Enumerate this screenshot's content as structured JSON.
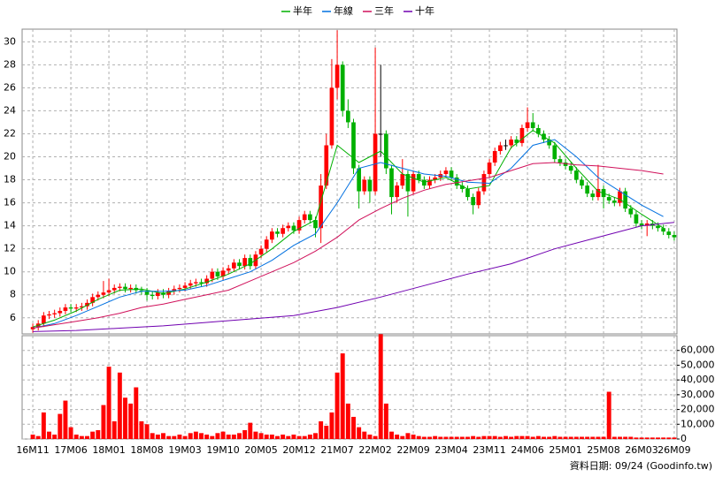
{
  "chart_data": {
    "type": "candlestick",
    "categories": [
      "16M11",
      null,
      null,
      null,
      null,
      null,
      null,
      "17M06",
      null,
      null,
      null,
      null,
      null,
      null,
      "18M01",
      null,
      null,
      null,
      null,
      null,
      null,
      "18M08",
      null,
      null,
      null,
      null,
      null,
      null,
      "19M03",
      null,
      null,
      null,
      null,
      null,
      null,
      "19M10",
      null,
      null,
      null,
      null,
      null,
      null,
      "20M05",
      null,
      null,
      null,
      null,
      null,
      null,
      "20M12",
      null,
      null,
      null,
      null,
      null,
      null,
      "21M07",
      null,
      null,
      null,
      null,
      null,
      null,
      "22M02",
      null,
      null,
      null,
      null,
      null,
      null,
      "22M09",
      null,
      null,
      null,
      null,
      null,
      null,
      "23M04",
      null,
      null,
      null,
      null,
      null,
      null,
      "23M11",
      null,
      null,
      null,
      null,
      null,
      null,
      "24M06",
      null,
      null,
      null,
      null,
      null,
      null,
      "25M01",
      null,
      null,
      null,
      null,
      null,
      null,
      "25M08",
      null,
      null,
      null,
      null,
      null,
      null,
      "26M03",
      null,
      null,
      null,
      null,
      null,
      "26M09"
    ],
    "open": [
      5.0,
      5.2,
      5.5,
      6.2,
      6.3,
      6.4,
      6.6,
      6.9,
      6.8,
      6.9,
      7.0,
      7.3,
      7.8,
      8.0,
      8.2,
      8.4,
      8.6,
      8.7,
      8.5,
      8.6,
      8.4,
      8.3,
      8.0,
      7.9,
      8.2,
      8.0,
      8.3,
      8.5,
      8.6,
      8.8,
      9.0,
      9.1,
      9.0,
      9.4,
      10.0,
      9.6,
      10.1,
      10.3,
      10.8,
      10.5,
      11.2,
      10.5,
      11.5,
      12.0,
      12.8,
      13.5,
      13.3,
      13.8,
      14.0,
      13.6,
      14.5,
      15.0,
      14.5,
      13.8,
      17.5,
      21.0,
      26.0,
      28.0,
      24.0,
      23.0,
      19.0,
      17.0,
      18.0,
      17.0,
      22.0,
      22.0,
      19.0,
      16.5,
      17.5,
      18.5,
      17.0,
      18.5,
      18.0,
      17.5,
      18.0,
      18.2,
      18.5,
      18.8,
      18.2,
      17.5,
      17.2,
      16.5,
      15.8,
      17.0,
      18.5,
      19.5,
      20.5,
      21.0,
      21.0,
      21.5,
      21.2,
      22.5,
      23.0,
      22.5,
      22.0,
      21.5,
      21.0,
      19.8,
      19.5,
      19.2,
      18.8,
      18.0,
      17.5,
      16.8,
      16.5,
      17.2,
      16.5,
      16.2,
      16.0,
      17.0,
      15.5,
      15.0,
      14.2,
      14.0,
      14.2,
      14.0,
      13.8,
      13.5,
      13.2
    ],
    "high": [
      5.5,
      5.8,
      6.5,
      6.6,
      6.7,
      6.9,
      7.2,
      7.2,
      7.2,
      7.3,
      7.6,
      8.1,
      8.3,
      9.2,
      9.4,
      8.9,
      9.0,
      9.0,
      8.9,
      8.9,
      8.7,
      8.6,
      8.3,
      8.5,
      8.5,
      8.6,
      8.8,
      8.9,
      9.1,
      9.3,
      9.4,
      9.4,
      9.7,
      10.3,
      10.3,
      10.4,
      10.6,
      11.1,
      11.1,
      11.5,
      11.5,
      11.8,
      12.3,
      13.1,
      13.8,
      13.8,
      14.1,
      14.3,
      14.3,
      14.8,
      15.3,
      15.3,
      14.8,
      18.5,
      22.0,
      28.5,
      31.0,
      28.3,
      25.0,
      23.3,
      19.3,
      18.3,
      18.3,
      29.5,
      28.0,
      22.3,
      19.3,
      17.8,
      19.8,
      18.8,
      18.8,
      18.8,
      18.3,
      18.3,
      18.5,
      18.8,
      19.1,
      19.1,
      18.5,
      17.8,
      17.5,
      16.8,
      17.3,
      18.8,
      19.8,
      20.8,
      21.3,
      21.5,
      21.8,
      21.8,
      22.8,
      24.3,
      23.8,
      22.8,
      22.3,
      21.8,
      21.3,
      20.1,
      19.8,
      19.5,
      19.1,
      18.3,
      17.8,
      17.1,
      19.3,
      17.5,
      16.8,
      16.5,
      17.3,
      17.3,
      15.8,
      15.3,
      14.5,
      14.5,
      14.5,
      14.3,
      14.1,
      13.8,
      13.5
    ],
    "low": [
      4.7,
      4.9,
      5.2,
      5.9,
      6.0,
      6.1,
      6.3,
      6.5,
      6.5,
      6.6,
      6.7,
      7.0,
      7.5,
      7.7,
      7.9,
      8.1,
      8.3,
      8.2,
      8.2,
      8.1,
      8.0,
      7.5,
      7.6,
      7.6,
      7.7,
      7.7,
      8.0,
      8.2,
      8.3,
      8.5,
      8.7,
      8.7,
      8.7,
      9.1,
      9.3,
      9.3,
      9.8,
      10.0,
      10.2,
      10.2,
      10.2,
      10.2,
      11.2,
      11.7,
      12.5,
      13.0,
      13.0,
      13.5,
      13.3,
      13.3,
      14.2,
      14.2,
      13.0,
      12.5,
      17.2,
      20.7,
      25.0,
      23.5,
      22.5,
      18.5,
      15.5,
      16.7,
      16.0,
      16.7,
      20.0,
      18.5,
      15.0,
      16.0,
      17.2,
      14.8,
      16.7,
      17.7,
      17.2,
      17.2,
      17.7,
      17.9,
      18.2,
      17.9,
      17.2,
      16.9,
      16.2,
      15.0,
      15.5,
      16.7,
      18.2,
      19.2,
      20.2,
      20.6,
      20.7,
      20.9,
      20.9,
      22.2,
      22.2,
      21.7,
      21.2,
      20.7,
      19.5,
      19.2,
      18.9,
      18.5,
      17.7,
      17.2,
      16.5,
      16.2,
      16.2,
      15.5,
      15.9,
      15.7,
      15.7,
      15.2,
      14.7,
      13.9,
      13.7,
      13.1,
      13.7,
      13.5,
      13.2,
      12.9,
      12.7
    ],
    "close": [
      5.2,
      5.5,
      6.2,
      6.3,
      6.4,
      6.6,
      6.9,
      6.8,
      6.9,
      7.0,
      7.3,
      7.8,
      8.0,
      8.2,
      8.4,
      8.6,
      8.7,
      8.5,
      8.6,
      8.4,
      8.3,
      8.0,
      7.9,
      8.2,
      8.0,
      8.3,
      8.5,
      8.6,
      8.8,
      9.0,
      9.1,
      9.0,
      9.4,
      10.0,
      9.6,
      10.1,
      10.3,
      10.8,
      10.5,
      11.2,
      10.5,
      11.5,
      12.0,
      12.8,
      13.5,
      13.3,
      13.8,
      14.0,
      13.6,
      14.5,
      15.0,
      14.5,
      13.8,
      17.5,
      21.0,
      26.0,
      28.0,
      24.0,
      23.0,
      19.0,
      17.0,
      18.0,
      17.0,
      22.0,
      22.0,
      19.0,
      16.5,
      17.5,
      18.5,
      17.0,
      18.5,
      18.0,
      17.5,
      18.0,
      18.2,
      18.5,
      18.8,
      18.2,
      17.5,
      17.2,
      16.5,
      15.8,
      17.0,
      18.5,
      19.5,
      20.5,
      21.0,
      21.0,
      21.5,
      21.2,
      22.5,
      23.0,
      22.5,
      22.0,
      21.5,
      21.0,
      19.8,
      19.5,
      19.2,
      18.8,
      18.0,
      17.5,
      16.8,
      16.5,
      17.2,
      16.5,
      16.2,
      16.0,
      17.0,
      15.5,
      15.0,
      14.2,
      14.0,
      14.2,
      14.0,
      13.8,
      13.5,
      13.2,
      13.0
    ],
    "volume": [
      3000,
      2000,
      18000,
      5000,
      3000,
      17000,
      26000,
      8000,
      3000,
      2000,
      2000,
      5000,
      6000,
      23000,
      49000,
      12000,
      45000,
      28000,
      24000,
      35000,
      12000,
      10000,
      4000,
      3000,
      4000,
      2000,
      2000,
      3000,
      2000,
      4000,
      5000,
      4000,
      3000,
      2000,
      4000,
      5000,
      3000,
      3000,
      4000,
      6000,
      11000,
      5000,
      4000,
      3000,
      3000,
      2000,
      3000,
      2000,
      3000,
      2000,
      2000,
      3000,
      4000,
      12000,
      9000,
      18000,
      45000,
      58000,
      24000,
      15000,
      8000,
      5000,
      3000,
      2000,
      71000,
      24000,
      5000,
      3000,
      2000,
      4000,
      3000,
      2000,
      1500,
      1500,
      2000,
      1500,
      1500,
      1500,
      1500,
      1500,
      1500,
      2000,
      1500,
      2000,
      2000,
      2000,
      1500,
      2000,
      1500,
      2000,
      2000,
      2000,
      1500,
      2000,
      1500,
      1500,
      2000,
      1500,
      1500,
      1500,
      1500,
      1500,
      1500,
      1500,
      1500,
      1500,
      32000,
      1500,
      1500,
      1500,
      1500,
      1000,
      1000,
      1000,
      1000,
      1000,
      1000,
      1000,
      1000
    ],
    "up_color": "#ff0000",
    "down_color": "#00b000",
    "volume_color": "#ff0000",
    "series": [
      {
        "name": "半年",
        "color": "#00b000",
        "x": [
          0,
          4,
          8,
          12,
          16,
          20,
          24,
          28,
          32,
          36,
          40,
          44,
          48,
          52,
          56,
          60,
          64,
          68,
          72,
          76,
          80,
          84,
          88,
          92,
          96,
          100,
          104,
          108,
          112,
          116
        ],
        "values": [
          5.2,
          5.8,
          6.6,
          7.6,
          8.4,
          8.5,
          8.1,
          8.5,
          9.1,
          9.8,
          10.7,
          12.0,
          13.5,
          14.5,
          21.0,
          19.5,
          20.5,
          18.5,
          17.8,
          18.2,
          17.2,
          17.5,
          20.8,
          22.3,
          21.2,
          19.0,
          17.0,
          16.3,
          15.0,
          13.8
        ]
      },
      {
        "name": "年線",
        "color": "#0070e0",
        "x": [
          0,
          4,
          8,
          12,
          16,
          20,
          24,
          28,
          32,
          36,
          40,
          44,
          48,
          52,
          56,
          60,
          64,
          68,
          72,
          76,
          80,
          84,
          88,
          92,
          96,
          100,
          104,
          108,
          112,
          116
        ],
        "values": [
          5.1,
          5.5,
          6.2,
          7.0,
          7.8,
          8.3,
          8.3,
          8.4,
          8.8,
          9.4,
          10.0,
          11.0,
          12.3,
          13.3,
          16.0,
          19.0,
          19.5,
          19.0,
          18.5,
          18.3,
          17.8,
          17.7,
          19.0,
          21.0,
          21.5,
          20.0,
          18.2,
          17.0,
          15.8,
          14.8
        ]
      },
      {
        "name": "三年",
        "color": "#d0105a",
        "x": [
          0,
          4,
          8,
          12,
          16,
          20,
          24,
          28,
          32,
          36,
          40,
          44,
          48,
          52,
          56,
          60,
          64,
          68,
          72,
          76,
          80,
          84,
          88,
          92,
          96,
          100,
          104,
          108,
          112,
          116
        ],
        "values": [
          5.1,
          5.4,
          5.7,
          6.0,
          6.4,
          6.9,
          7.2,
          7.6,
          8.0,
          8.4,
          9.2,
          10.0,
          10.8,
          11.8,
          13.0,
          14.5,
          15.5,
          16.4,
          17.1,
          17.6,
          17.9,
          18.2,
          18.8,
          19.4,
          19.5,
          19.3,
          19.2,
          19.0,
          18.8,
          18.5
        ]
      },
      {
        "name": "十年",
        "color": "#7000b0",
        "x": [
          0,
          8,
          16,
          24,
          32,
          40,
          48,
          56,
          64,
          72,
          80,
          88,
          96,
          104,
          112,
          118
        ],
        "values": [
          4.8,
          4.9,
          5.1,
          5.3,
          5.6,
          5.9,
          6.2,
          6.9,
          7.8,
          8.8,
          9.8,
          10.7,
          12.0,
          13.0,
          14.0,
          14.3
        ]
      }
    ],
    "ylim": [
      4.6,
      31.1
    ],
    "yticks": [
      6,
      8,
      10,
      12,
      14,
      16,
      18,
      20,
      22,
      24,
      26,
      28,
      30
    ],
    "y2lim": [
      0,
      70000
    ],
    "y2ticks": [
      0,
      {
        "value": 10000,
        "label": "10,000"
      },
      {
        "value": 20000,
        "label": "20,000"
      },
      {
        "value": 30000,
        "label": "30,000"
      },
      {
        "value": 40000,
        "label": "40,000"
      },
      {
        "value": 50000,
        "label": "50,000"
      },
      {
        "value": 60000,
        "label": "60,000"
      }
    ],
    "grid": true,
    "footnote": "資料日期: 09/24 (Goodinfo.tw)"
  }
}
